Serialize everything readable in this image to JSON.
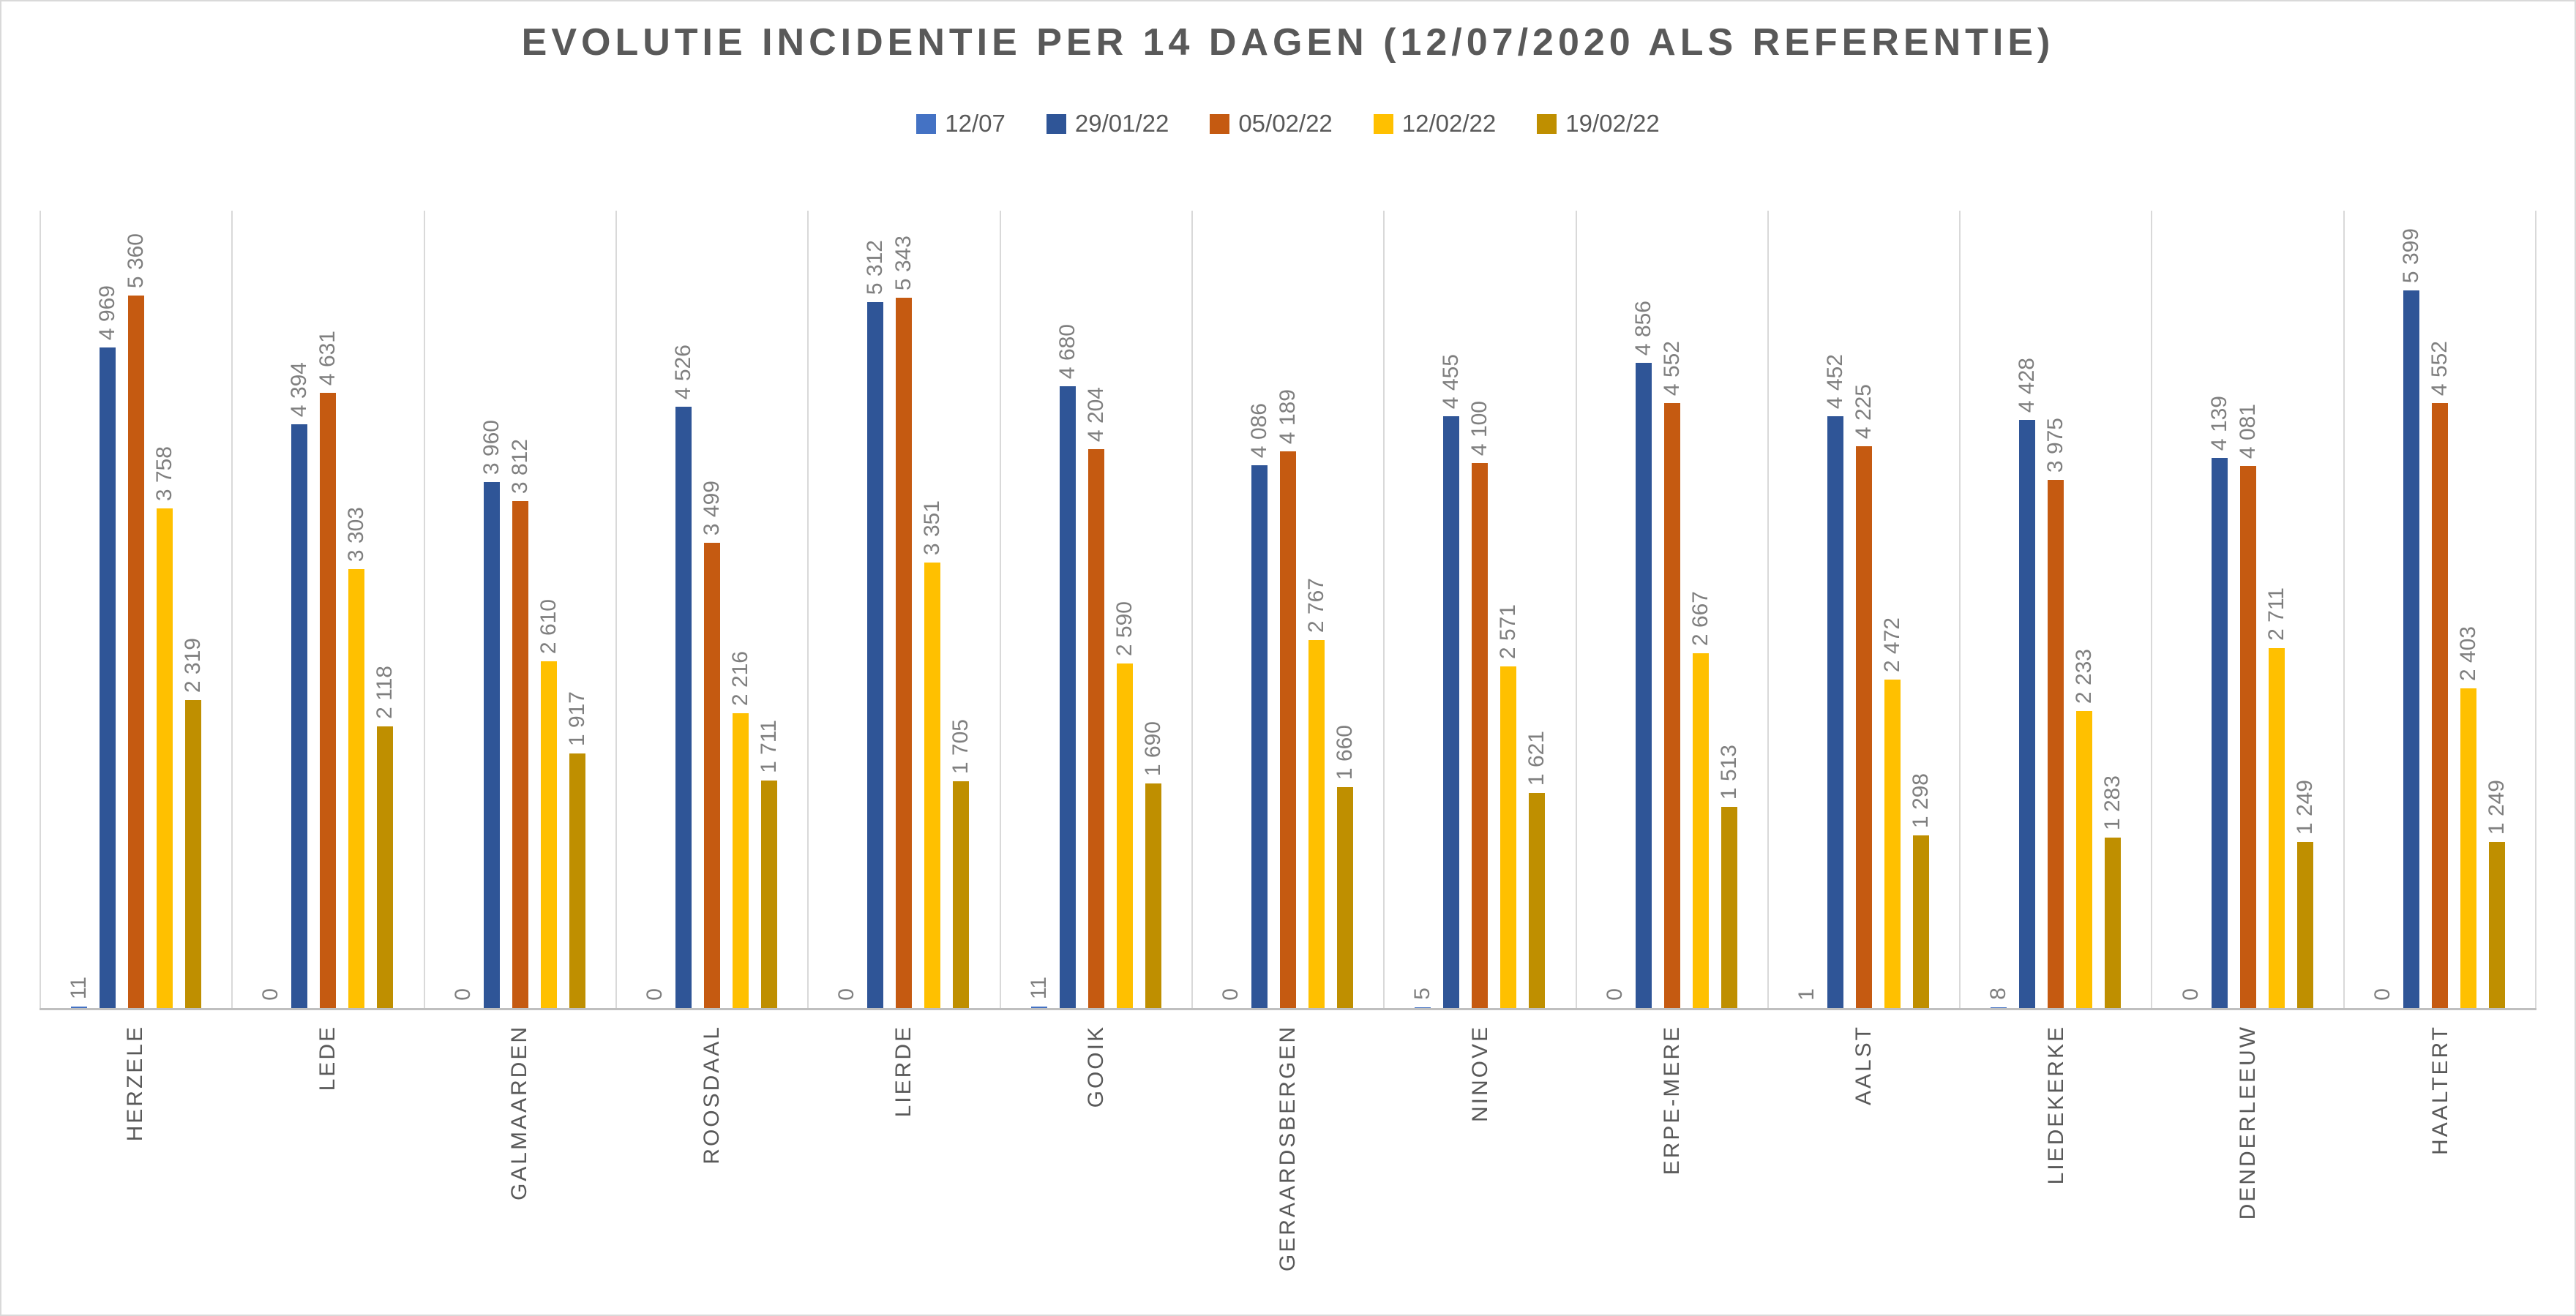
{
  "chart_data": {
    "type": "bar",
    "title": "EVOLUTIE INCIDENTIE PER 14 DAGEN (12/07/2020 ALS REFERENTIE)",
    "categories": [
      "HERZELE",
      "LEDE",
      "GALMAARDEN",
      "ROOSDAAL",
      "LIERDE",
      "GOOIK",
      "GERAARDSBERGEN",
      "NINOVE",
      "ERPE-MERE",
      "AALST",
      "LIEDEKERKE",
      "DENDERLEEUW",
      "HAALTERT"
    ],
    "series": [
      {
        "name": "12/07",
        "color": "#4472C4",
        "values": [
          11,
          0,
          0,
          0,
          0,
          11,
          0,
          5,
          0,
          1,
          8,
          0,
          0
        ]
      },
      {
        "name": "29/01/22",
        "color": "#2F5597",
        "values": [
          4969,
          4394,
          3960,
          4526,
          5312,
          4680,
          4086,
          4455,
          4856,
          4452,
          4428,
          4139,
          5399
        ]
      },
      {
        "name": "05/02/22",
        "color": "#C55A11",
        "values": [
          5360,
          4631,
          3812,
          3499,
          5343,
          4204,
          4189,
          4100,
          4552,
          4225,
          3975,
          4081,
          4552
        ]
      },
      {
        "name": "12/02/22",
        "color": "#FFC000",
        "values": [
          3758,
          3303,
          2610,
          2216,
          3351,
          2590,
          2767,
          2571,
          2667,
          2472,
          2233,
          2711,
          2403
        ]
      },
      {
        "name": "19/02/22",
        "color": "#BF8F00",
        "values": [
          2319,
          2118,
          1917,
          1711,
          1705,
          1690,
          1660,
          1621,
          1513,
          1298,
          1283,
          1249,
          1249
        ]
      }
    ],
    "ylim": [
      0,
      6000
    ],
    "legend_position": "top",
    "grid": "vertical category separators only",
    "number_format": "space thousands separator",
    "value_labels": "rotated 90deg above each bar",
    "colors": {
      "title_text": "#595959",
      "value_label_text": "#7F7F7F",
      "category_label_text": "#595959",
      "separator_line": "#D9D9D9",
      "axis_line": "#BFBFBF",
      "chart_border": "#D9D9D9",
      "background": "#FFFFFF"
    }
  }
}
